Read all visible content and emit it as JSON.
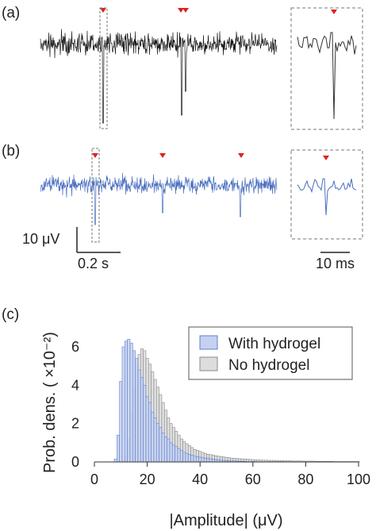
{
  "panels": {
    "a": {
      "label": "(a)"
    },
    "b": {
      "label": "(b)"
    },
    "c": {
      "label": "(c)"
    }
  },
  "scalebars": {
    "voltage": "10 μV",
    "time_main": "0.2 s",
    "time_zoom": "10 ms"
  },
  "colors": {
    "trace_a": "#1a1a1a",
    "trace_b": "#4a6fc0",
    "spike_marker": "#e02020",
    "hist_hydrogel_fill": "#c5d1ef",
    "hist_hydrogel_edge": "#5f7fcf",
    "hist_nohydrogel_fill": "#dddddd",
    "hist_nohydrogel_edge": "#8a8a8a",
    "dashed_box": "#777777"
  },
  "traces": {
    "a": {
      "spike_marker_count": 3,
      "marker_icon": "red-triangle-icon"
    },
    "b": {
      "spike_marker_count": 3,
      "marker_icon": "red-triangle-icon"
    }
  },
  "chart_data": {
    "type": "bar",
    "xlabel": "|Amplitude| (μV)",
    "ylabel": "Prob. dens. ( ×10⁻²)",
    "xlim": [
      0,
      100
    ],
    "ylim": [
      0,
      7
    ],
    "xticks": [
      "0",
      "20",
      "40",
      "60",
      "80",
      "100"
    ],
    "yticks": [
      "0",
      "2",
      "4",
      "6"
    ],
    "legend_position": "top-right",
    "bin_width": 1,
    "x": [
      8,
      9,
      10,
      11,
      12,
      13,
      14,
      15,
      16,
      17,
      18,
      19,
      20,
      21,
      22,
      23,
      24,
      25,
      26,
      27,
      28,
      29,
      30,
      31,
      32,
      33,
      34,
      35,
      36,
      37,
      38,
      39,
      40,
      41,
      42,
      43,
      44,
      45,
      46,
      47,
      48,
      49,
      50,
      51,
      52,
      53,
      54,
      55,
      56,
      57,
      58,
      59,
      60,
      61,
      62,
      63,
      64,
      65,
      66,
      67,
      68,
      69,
      70,
      71,
      72,
      73,
      74,
      75,
      76,
      77,
      78,
      79,
      80,
      81,
      82,
      83,
      84,
      85,
      86,
      87,
      88,
      89,
      90,
      91,
      92,
      93,
      94,
      95,
      96,
      97,
      98,
      99,
      100
    ],
    "series": [
      {
        "name": "With hydrogel",
        "values": [
          0.15,
          1.4,
          4.2,
          6.0,
          6.3,
          6.4,
          6.2,
          5.8,
          5.4,
          4.8,
          4.4,
          4.0,
          3.4,
          3.1,
          2.6,
          2.3,
          2.0,
          1.8,
          1.5,
          1.3,
          1.2,
          1.0,
          0.9,
          0.8,
          0.7,
          0.6,
          0.5,
          0.45,
          0.4,
          0.35,
          0.3,
          0.28,
          0.25,
          0.22,
          0.2,
          0.18,
          0.16,
          0.14,
          0.12,
          0.1,
          0.09,
          0.08,
          0.07,
          0.06,
          0.05,
          0.05,
          0.04,
          0.04,
          0.03,
          0.03,
          0.02,
          0.02,
          0.02,
          0.02,
          0.01,
          0.01,
          0.01,
          0.01,
          0.01,
          0.01,
          0.01,
          0.01,
          0.01,
          0.01,
          0,
          0,
          0,
          0,
          0,
          0,
          0,
          0,
          0,
          0,
          0,
          0,
          0,
          0,
          0,
          0,
          0,
          0,
          0,
          0,
          0,
          0,
          0,
          0,
          0,
          0,
          0,
          0,
          0
        ]
      },
      {
        "name": "No hydrogel",
        "values": [
          0,
          0,
          0,
          0.05,
          0.3,
          1.2,
          2.6,
          3.9,
          5.0,
          5.6,
          5.9,
          5.8,
          5.4,
          5.1,
          4.7,
          4.3,
          3.9,
          3.5,
          3.1,
          2.7,
          2.3,
          2.0,
          1.8,
          1.6,
          1.4,
          1.2,
          1.05,
          0.95,
          0.85,
          0.75,
          0.65,
          0.6,
          0.55,
          0.5,
          0.45,
          0.4,
          0.38,
          0.35,
          0.32,
          0.3,
          0.28,
          0.26,
          0.24,
          0.22,
          0.2,
          0.19,
          0.18,
          0.17,
          0.16,
          0.15,
          0.14,
          0.13,
          0.12,
          0.11,
          0.1,
          0.1,
          0.09,
          0.09,
          0.08,
          0.08,
          0.08,
          0.07,
          0.07,
          0.07,
          0.06,
          0.06,
          0.06,
          0.05,
          0.05,
          0.05,
          0.05,
          0.04,
          0.04,
          0.04,
          0.04,
          0.04,
          0.03,
          0.03,
          0.03,
          0.03,
          0.03,
          0.03,
          0.03,
          0.02,
          0.02,
          0.02,
          0.02,
          0.02,
          0.02,
          0.02,
          0.02,
          0.02,
          0.02
        ]
      }
    ]
  }
}
